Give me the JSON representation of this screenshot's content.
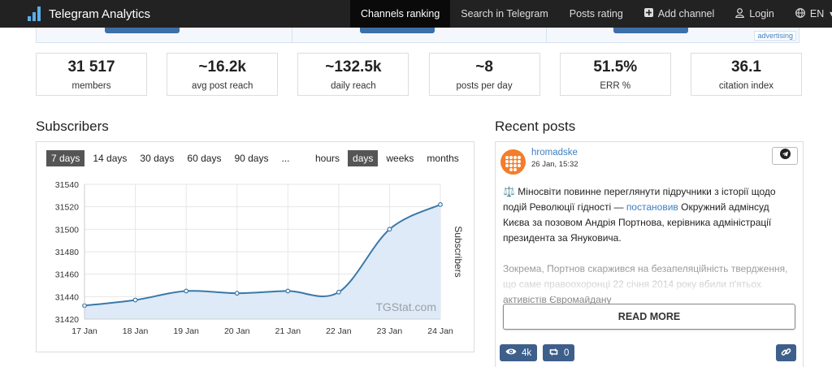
{
  "navbar": {
    "brand": "Telegram Analytics",
    "items": [
      {
        "label": "Channels ranking",
        "active": true
      },
      {
        "label": "Search in Telegram"
      },
      {
        "label": "Posts rating"
      },
      {
        "label": "Add channel",
        "icon": "plus-square-icon"
      },
      {
        "label": "Login",
        "icon": "user-icon"
      },
      {
        "label": "EN",
        "icon": "globe-icon"
      }
    ]
  },
  "ad": {
    "label": "advertising"
  },
  "stats": [
    {
      "value": "31 517",
      "label": "members"
    },
    {
      "value": "~16.2k",
      "label": "avg post reach"
    },
    {
      "value": "~132.5k",
      "label": "daily reach"
    },
    {
      "value": "~8",
      "label": "posts per day"
    },
    {
      "value": "51.5%",
      "label": "ERR %"
    },
    {
      "value": "36.1",
      "label": "citation index"
    }
  ],
  "subscribers": {
    "title": "Subscribers",
    "ranges": [
      "7 days",
      "14 days",
      "30 days",
      "60 days",
      "90 days",
      "..."
    ],
    "active_range": "7 days",
    "scales": [
      "hours",
      "days",
      "weeks",
      "months"
    ],
    "active_scale": "days"
  },
  "chart_data": {
    "type": "area",
    "x": [
      "17 Jan",
      "18 Jan",
      "19 Jan",
      "20 Jan",
      "21 Jan",
      "22 Jan",
      "23 Jan",
      "24 Jan"
    ],
    "values": [
      31432,
      31437,
      31445,
      31443,
      31445,
      31444,
      31500,
      31522
    ],
    "yticks": [
      31420,
      31440,
      31460,
      31480,
      31500,
      31520,
      31540
    ],
    "ylim": [
      31420,
      31540
    ],
    "ylabel": "Subscribers",
    "watermark": "TGStat.com",
    "grid": true,
    "line_color": "#3a78a8",
    "fill_color": "#deeaf7"
  },
  "recent_posts": {
    "title": "Recent posts",
    "post": {
      "author": "hromadske",
      "date": "26 Jan, 15:32",
      "text_before": "⚖️ Міносвіти повинне переглянути підручники з історії щодо подій Революції гідності — ",
      "link": "постановив",
      "text_after": " Окружний адмінсуд Києва за позовом Андрія Портнова, керівника адміністрації президента за Януковича.",
      "text_faded": "Зокрема, Портнов скаржився на безапеляційність твердження, що саме правоохоронці 22 січня 2014 року вбили п'ятьох активістів Євромайдану",
      "read_more": "READ MORE",
      "views": "4k",
      "shares": "0"
    }
  }
}
